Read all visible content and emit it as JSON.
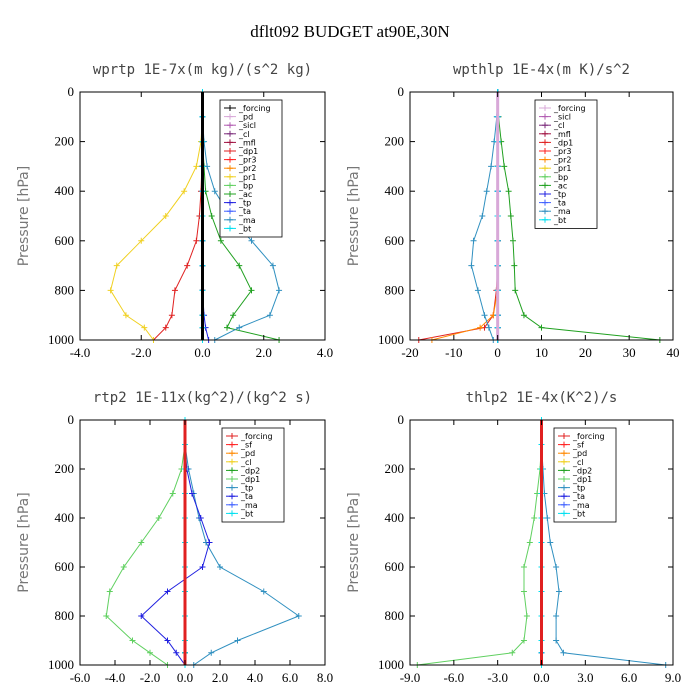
{
  "figure": {
    "title": "dflt092  BUDGET at90E,30N"
  },
  "chart_data": [
    {
      "type": "line",
      "title": "wprtp  1E-7x(m kg)/(s^2 kg)",
      "ylabel": "Pressure [hPa]",
      "xlim": [
        -4.0,
        4.0
      ],
      "ylim": [
        0,
        1000
      ],
      "y_inverted": true,
      "xticks": [
        "-4.0",
        "-2.0",
        "0.0",
        "2.0",
        "4.0"
      ],
      "yticks": [
        "0",
        "200",
        "400",
        "600",
        "800",
        "1000"
      ],
      "legend_position": "top-right",
      "y": [
        0,
        100,
        200,
        300,
        400,
        500,
        600,
        700,
        800,
        900,
        950,
        1000
      ],
      "series": [
        {
          "name": "_forcing",
          "color": "#000000",
          "values": [
            0,
            0,
            0,
            0,
            0,
            0,
            0,
            0,
            0,
            0,
            0,
            0
          ]
        },
        {
          "name": "_pd",
          "color": "#d8a8d8",
          "values": [
            0,
            0,
            0,
            0,
            0,
            0,
            0,
            0,
            0,
            0,
            0,
            0
          ]
        },
        {
          "name": "_sicl",
          "color": "#b05ab0",
          "values": [
            0,
            0,
            0,
            0,
            0,
            0,
            0,
            0,
            0,
            0,
            0,
            0
          ]
        },
        {
          "name": "_cl",
          "color": "#7a2a7a",
          "values": [
            0,
            0,
            0,
            0,
            0,
            0,
            0,
            0,
            0,
            0,
            0,
            0
          ]
        },
        {
          "name": "_mfl",
          "color": "#a01040",
          "values": [
            0,
            0,
            0,
            0,
            0,
            0,
            0,
            0,
            0,
            0,
            0,
            0
          ]
        },
        {
          "name": "_dp1",
          "color": "#e02020",
          "values": [
            0,
            0,
            0,
            -0.02,
            -0.05,
            -0.1,
            -0.2,
            -0.5,
            -0.9,
            -1.0,
            -1.2,
            -1.6
          ]
        },
        {
          "name": "_pr3",
          "color": "#ff2020",
          "values": [
            0,
            0,
            0,
            0,
            0,
            0,
            0,
            0,
            0,
            0,
            0,
            0
          ]
        },
        {
          "name": "_pr2",
          "color": "#ff8800",
          "values": [
            0,
            0,
            0,
            0,
            0,
            0,
            0,
            0,
            0,
            0,
            0,
            0
          ]
        },
        {
          "name": "_pr1",
          "color": "#f0d020",
          "values": [
            0,
            0,
            -0.05,
            -0.2,
            -0.6,
            -1.2,
            -2.0,
            -2.8,
            -3.0,
            -2.5,
            -1.9,
            -1.6
          ]
        },
        {
          "name": "_bp",
          "color": "#60d060",
          "values": [
            0,
            0,
            0,
            0,
            0,
            0,
            0,
            0,
            0,
            0,
            0,
            0
          ]
        },
        {
          "name": "_ac",
          "color": "#20a020",
          "values": [
            0,
            0,
            0,
            0.05,
            0.1,
            0.3,
            0.6,
            1.2,
            1.6,
            1.0,
            0.8,
            2.5
          ]
        },
        {
          "name": "_tp",
          "color": "#2020e0",
          "values": [
            0,
            0,
            0,
            0,
            0,
            0,
            0,
            0,
            0,
            0.05,
            0.1,
            0.2
          ]
        },
        {
          "name": "_ta",
          "color": "#4060ff",
          "values": [
            0,
            0,
            0,
            0,
            0,
            0,
            0,
            0,
            0,
            0,
            0,
            0
          ]
        },
        {
          "name": "_ma",
          "color": "#3090c0",
          "values": [
            0,
            0,
            0.05,
            0.15,
            0.4,
            0.9,
            1.6,
            2.3,
            2.5,
            2.2,
            1.2,
            0.4
          ]
        },
        {
          "name": "_bt",
          "color": "#00e0f0",
          "values": [
            0,
            0,
            0,
            0,
            0,
            0,
            0,
            0,
            0,
            0,
            0,
            0
          ]
        }
      ]
    },
    {
      "type": "line",
      "title": "wpthlp  1E-4x(m K)/s^2",
      "ylabel": "Pressure [hPa]",
      "xlim": [
        -20,
        40
      ],
      "ylim": [
        0,
        1000
      ],
      "y_inverted": true,
      "xticks": [
        "-20",
        "-10",
        "0",
        "10",
        "20",
        "30",
        "40"
      ],
      "yticks": [
        "0",
        "200",
        "400",
        "600",
        "800",
        "1000"
      ],
      "legend_position": "top-right",
      "y": [
        0,
        100,
        200,
        300,
        400,
        500,
        600,
        700,
        800,
        900,
        950,
        1000
      ],
      "series": [
        {
          "name": "_forcing",
          "color": "#d8a8d8",
          "values": [
            0,
            0,
            0,
            0,
            0,
            0,
            0,
            0,
            0,
            0,
            0,
            0
          ]
        },
        {
          "name": "_sicl",
          "color": "#b05ab0",
          "values": [
            0,
            0,
            0,
            0,
            0,
            0,
            0,
            0,
            0,
            0,
            0,
            0
          ]
        },
        {
          "name": "_cl",
          "color": "#7a2a7a",
          "values": [
            0,
            0,
            0,
            0,
            0,
            0,
            0,
            0,
            0,
            0,
            0,
            0
          ]
        },
        {
          "name": "_mfl",
          "color": "#a01040",
          "values": [
            0,
            0,
            0,
            0,
            0,
            0,
            0,
            0,
            0,
            0,
            0,
            0
          ]
        },
        {
          "name": "_dp1",
          "color": "#e02020",
          "values": [
            0,
            0,
            0,
            0,
            0,
            0,
            0,
            0,
            -0.3,
            -1.0,
            -3.0,
            -18
          ]
        },
        {
          "name": "_pr3",
          "color": "#ff2020",
          "values": [
            0,
            0,
            0,
            0,
            0,
            0,
            0,
            0,
            0,
            0,
            0,
            0
          ]
        },
        {
          "name": "_pr2",
          "color": "#ff8800",
          "values": [
            0,
            0,
            0,
            0,
            0,
            0,
            0,
            0,
            0,
            -1.0,
            -4.0,
            -15
          ]
        },
        {
          "name": "_pr1",
          "color": "#f0d020",
          "values": [
            0,
            0,
            0,
            0,
            0,
            0,
            0,
            0,
            0,
            0,
            0,
            0
          ]
        },
        {
          "name": "_bp",
          "color": "#60d060",
          "values": [
            0,
            0,
            0,
            0,
            0,
            0,
            0,
            0,
            0,
            0,
            0,
            0
          ]
        },
        {
          "name": "_ac",
          "color": "#20a020",
          "values": [
            0,
            0.2,
            0.8,
            1.5,
            2.5,
            3.0,
            3.5,
            3.8,
            4.0,
            6.0,
            10,
            37
          ]
        },
        {
          "name": "_tp",
          "color": "#2020e0",
          "values": [
            0,
            0,
            0,
            0,
            0,
            0,
            0,
            0,
            0,
            0,
            0,
            0
          ]
        },
        {
          "name": "_ta",
          "color": "#4060ff",
          "values": [
            0,
            0,
            0,
            0,
            0,
            0,
            0,
            0,
            0,
            0,
            0,
            0
          ]
        },
        {
          "name": "_ma",
          "color": "#3090c0",
          "values": [
            0,
            -0.2,
            -0.8,
            -1.5,
            -2.5,
            -3.5,
            -5.5,
            -6.0,
            -4.5,
            -3.0,
            -2.0,
            -1.0
          ]
        },
        {
          "name": "_bt",
          "color": "#00e0f0",
          "values": [
            0,
            0,
            0,
            0,
            0,
            0,
            0,
            0,
            0,
            0,
            0,
            0
          ]
        }
      ]
    },
    {
      "type": "line",
      "title": "rtp2  1E-11x(kg^2)/(kg^2 s)",
      "ylabel": "Pressure [hPa]",
      "xlim": [
        -6.0,
        8.0
      ],
      "ylim": [
        0,
        1000
      ],
      "y_inverted": true,
      "xticks": [
        "-6.0",
        "-4.0",
        "-2.0",
        "0.0",
        "2.0",
        "4.0",
        "6.0",
        "8.0"
      ],
      "yticks": [
        "0",
        "200",
        "400",
        "600",
        "800",
        "1000"
      ],
      "legend_position": "top-right",
      "y": [
        0,
        100,
        200,
        300,
        400,
        500,
        600,
        700,
        800,
        900,
        950,
        1000
      ],
      "series": [
        {
          "name": "_forcing",
          "color": "#e02020",
          "values": [
            0,
            0,
            0,
            0,
            0,
            0,
            0,
            0,
            0,
            0,
            0,
            0
          ]
        },
        {
          "name": "_sf",
          "color": "#ff2020",
          "values": [
            0,
            0,
            0,
            0,
            0,
            0,
            0,
            0,
            0,
            0,
            0,
            0
          ]
        },
        {
          "name": "_pd",
          "color": "#ff8800",
          "values": [
            0,
            0,
            0,
            0,
            0,
            0,
            0,
            0,
            0,
            0,
            0,
            0
          ]
        },
        {
          "name": "_cl",
          "color": "#f0d020",
          "values": [
            0,
            0,
            0,
            0,
            0,
            0,
            0,
            0,
            0,
            0,
            0,
            0
          ]
        },
        {
          "name": "_dp2",
          "color": "#20a020",
          "values": [
            0,
            0,
            0,
            0,
            0,
            0,
            0,
            0,
            0,
            0,
            0,
            0
          ]
        },
        {
          "name": "_dp1",
          "color": "#60d060",
          "values": [
            0,
            0,
            -0.2,
            -0.7,
            -1.5,
            -2.5,
            -3.5,
            -4.3,
            -4.5,
            -3.0,
            -2.0,
            -1.0
          ]
        },
        {
          "name": "_tp",
          "color": "#3090c0",
          "values": [
            0,
            0,
            0.2,
            0.5,
            0.8,
            1.2,
            2.0,
            4.5,
            6.5,
            3.0,
            1.5,
            0.5
          ]
        },
        {
          "name": "_ta",
          "color": "#2020e0",
          "values": [
            0,
            0,
            0.1,
            0.4,
            0.9,
            1.4,
            1.0,
            -1.0,
            -2.5,
            -1.0,
            -0.5,
            0
          ]
        },
        {
          "name": "_ma",
          "color": "#4060ff",
          "values": [
            0,
            0,
            0,
            0,
            0,
            0,
            0,
            0,
            0,
            0,
            0,
            0
          ]
        },
        {
          "name": "_bt",
          "color": "#00e0f0",
          "values": [
            0,
            0,
            0,
            0,
            0,
            0,
            0,
            0,
            0,
            0,
            0,
            0
          ]
        }
      ]
    },
    {
      "type": "line",
      "title": "thlp2  1E-4x(K^2)/s",
      "ylabel": "Pressure [hPa]",
      "xlim": [
        -9.0,
        9.0
      ],
      "ylim": [
        0,
        1000
      ],
      "y_inverted": true,
      "xticks": [
        "-9.0",
        "-6.0",
        "-3.0",
        "0.0",
        "3.0",
        "6.0",
        "9.0"
      ],
      "yticks": [
        "0",
        "200",
        "400",
        "600",
        "800",
        "1000"
      ],
      "legend_position": "top-right",
      "y": [
        0,
        100,
        200,
        300,
        400,
        500,
        600,
        700,
        800,
        900,
        950,
        1000
      ],
      "series": [
        {
          "name": "_forcing",
          "color": "#e02020",
          "values": [
            0,
            0,
            0,
            0,
            0,
            0,
            0,
            0,
            0,
            0,
            0,
            0
          ]
        },
        {
          "name": "_sf",
          "color": "#ff2020",
          "values": [
            0,
            0,
            0,
            0,
            0,
            0,
            0,
            0,
            0,
            0,
            0,
            0
          ]
        },
        {
          "name": "_pd",
          "color": "#ff8800",
          "values": [
            0,
            0,
            0,
            0,
            0,
            0,
            0,
            0,
            0,
            0,
            0,
            0
          ]
        },
        {
          "name": "_cl",
          "color": "#f0d020",
          "values": [
            0,
            0,
            0,
            0,
            0,
            0,
            0,
            0,
            0,
            0,
            0,
            0
          ]
        },
        {
          "name": "_dp2",
          "color": "#20a020",
          "values": [
            0,
            0,
            0,
            0,
            0,
            0,
            0,
            0,
            0,
            0,
            0,
            0
          ]
        },
        {
          "name": "_dp1",
          "color": "#60d060",
          "values": [
            0,
            0,
            -0.1,
            -0.3,
            -0.5,
            -0.8,
            -1.2,
            -1.2,
            -1.0,
            -1.2,
            -2.0,
            -8.5
          ]
        },
        {
          "name": "_tp",
          "color": "#3090c0",
          "values": [
            0,
            0,
            0.1,
            0.2,
            0.4,
            0.6,
            1.0,
            1.2,
            1.0,
            1.0,
            1.5,
            8.5
          ]
        },
        {
          "name": "_ta",
          "color": "#2020e0",
          "values": [
            0,
            0,
            0,
            0,
            0,
            0,
            0,
            0,
            0,
            0,
            0,
            0
          ]
        },
        {
          "name": "_ma",
          "color": "#4060ff",
          "values": [
            0,
            0,
            0,
            0,
            0,
            0,
            0,
            0,
            0,
            0,
            0,
            0
          ]
        },
        {
          "name": "_bt",
          "color": "#00e0f0",
          "values": [
            0,
            0,
            0,
            0,
            0,
            0,
            0,
            0,
            0,
            0,
            0,
            0
          ]
        }
      ]
    }
  ]
}
